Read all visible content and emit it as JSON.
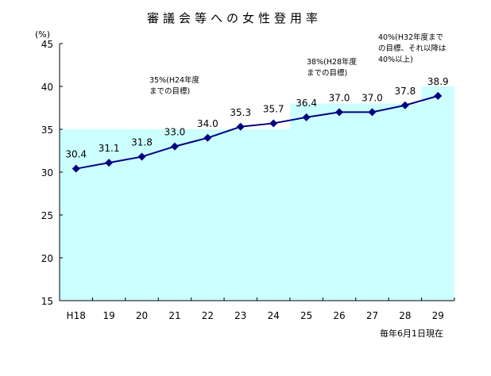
{
  "chart_data": {
    "type": "line",
    "title": "審議会等への女性登用率",
    "ylabel": "(%)",
    "xlabel": "",
    "note": "毎年6月1日現在",
    "categories": [
      "H18",
      "19",
      "20",
      "21",
      "22",
      "23",
      "24",
      "25",
      "26",
      "27",
      "28",
      "29"
    ],
    "series": [
      {
        "values": [
          30.4,
          31.1,
          31.8,
          33.0,
          34.0,
          35.3,
          35.7,
          36.4,
          37.0,
          37.0,
          37.8,
          38.9
        ],
        "labels": [
          "30.4",
          "31.1",
          "31.8",
          "33.0",
          "34.0",
          "35.3",
          "35.7",
          "36.4",
          "37.0",
          "37.0",
          "37.8",
          "38.9"
        ]
      }
    ],
    "targets": [
      {
        "value": 35,
        "from": "H18",
        "to": "24",
        "label_lines": [
          "35%(H24年度",
          "までの目標)"
        ]
      },
      {
        "value": 38,
        "from": "25",
        "to": "28",
        "label_lines": [
          "38%(H28年度",
          "までの目標)"
        ]
      },
      {
        "value": 40,
        "from": "29",
        "to": "29",
        "label_lines": [
          "40%(H32年度まで",
          "の目標、それ以降は",
          "40%以上)"
        ]
      }
    ],
    "ylim": [
      15,
      45
    ],
    "yticks": [
      15,
      20,
      25,
      30,
      35,
      40,
      45
    ],
    "grid": false,
    "legend": "none",
    "colors": {
      "line": "#000080",
      "target_fill": "#ccffff"
    }
  }
}
